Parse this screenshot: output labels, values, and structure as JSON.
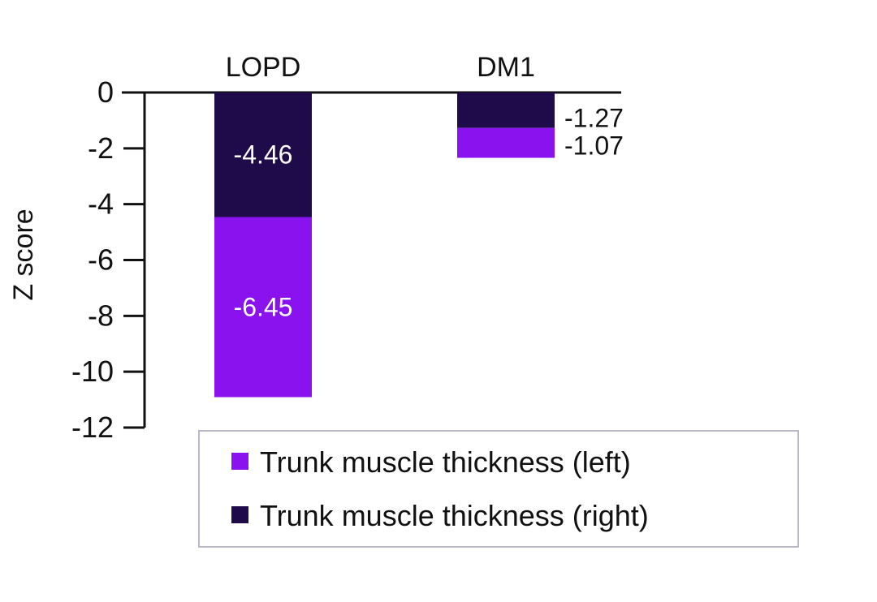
{
  "chart_data": {
    "type": "bar",
    "stacked": true,
    "categories": [
      "LOPD",
      "DM1"
    ],
    "series": [
      {
        "name": "Trunk muscle thickness (right)",
        "values": [
          -4.46,
          -1.27
        ],
        "color": "#1f0a4a",
        "labels": [
          "-4.46",
          "-1.27"
        ]
      },
      {
        "name": "Trunk muscle thickness (left)",
        "values": [
          -6.45,
          -1.07
        ],
        "color": "#8a12ee",
        "labels": [
          "-6.45",
          "-1.07"
        ]
      }
    ],
    "ylabel": "Z score",
    "ylim": [
      -12,
      0
    ],
    "yticks": [
      "0",
      "-2",
      "-4",
      "-6",
      "-8",
      "-10",
      "-12"
    ],
    "category_labels_position": "top",
    "legend": {
      "position": "bottom-right",
      "entries": [
        {
          "label": "Trunk muscle thickness (left)",
          "color": "#8a12ee"
        },
        {
          "label": "Trunk muscle thickness (right)",
          "color": "#1f0a4a"
        }
      ]
    },
    "grid": false
  }
}
